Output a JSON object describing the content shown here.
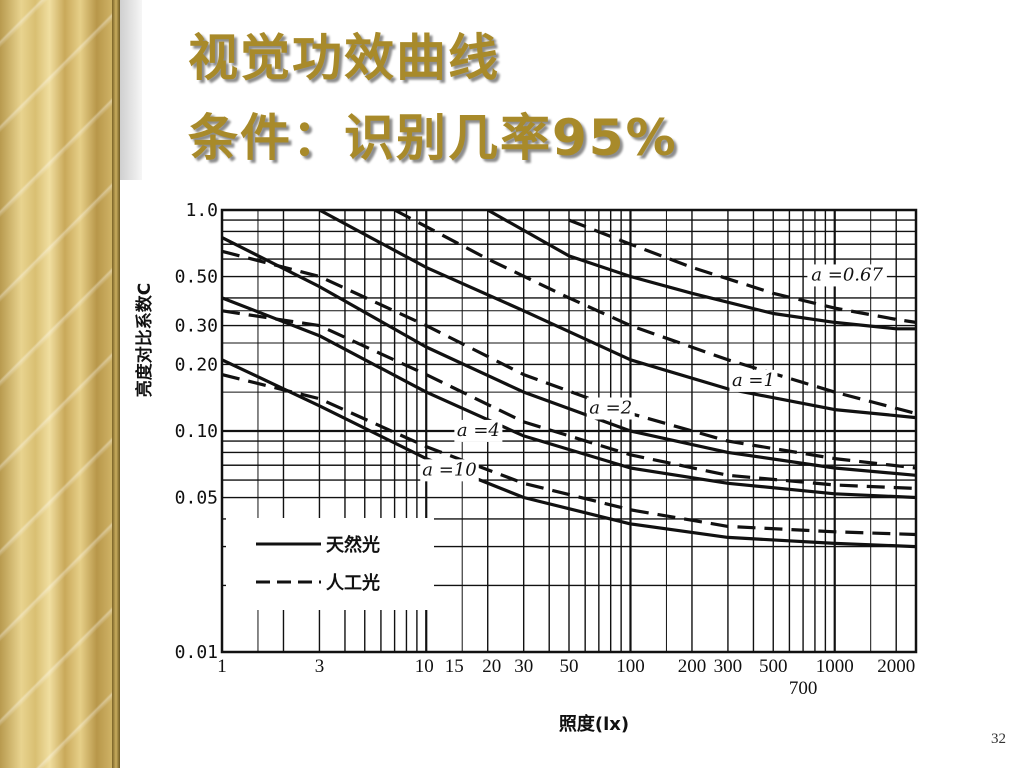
{
  "slide": {
    "title": "视觉功效曲线",
    "subtitle": "条件：识别几率95%",
    "page_number": "32"
  },
  "chart_data": {
    "type": "line",
    "xscale": "log",
    "yscale": "log",
    "xlabel": "照度(lx)",
    "ylabel": "亮度对比系数C",
    "xlim": [
      1,
      2500
    ],
    "ylim": [
      0.01,
      1.0
    ],
    "x_ticks": [
      {
        "value": 1,
        "label": "1"
      },
      {
        "value": 3,
        "label": "3"
      },
      {
        "value": 10,
        "label": "10"
      },
      {
        "value": 15,
        "label": "15"
      },
      {
        "value": 20,
        "label": "20"
      },
      {
        "value": 30,
        "label": "30"
      },
      {
        "value": 50,
        "label": "50"
      },
      {
        "value": 100,
        "label": "100"
      },
      {
        "value": 200,
        "label": "200"
      },
      {
        "value": 300,
        "label": "300"
      },
      {
        "value": 500,
        "label": "500"
      },
      {
        "value": 700,
        "label": "700"
      },
      {
        "value": 1000,
        "label": "1000"
      },
      {
        "value": 2000,
        "label": "2000"
      }
    ],
    "y_ticks": [
      {
        "value": 1.0,
        "label": "1.0"
      },
      {
        "value": 0.5,
        "label": "0.50"
      },
      {
        "value": 0.3,
        "label": "0.30"
      },
      {
        "value": 0.2,
        "label": "0.20"
      },
      {
        "value": 0.1,
        "label": "0.10"
      },
      {
        "value": 0.05,
        "label": "0.05"
      },
      {
        "value": 0.01,
        "label": "0.01"
      }
    ],
    "legend": {
      "placement": "bottom-left",
      "entries": [
        {
          "label": "天然光",
          "style": "solid"
        },
        {
          "label": "人工光",
          "style": "dashed"
        }
      ]
    },
    "curve_labels": [
      {
        "text": "a =0.67",
        "x": 1150,
        "y": 0.48
      },
      {
        "text": "a =1",
        "x": 400,
        "y": 0.16
      },
      {
        "text": "a =2",
        "x": 80,
        "y": 0.12
      },
      {
        "text": "a =4",
        "x": 18,
        "y": 0.095
      },
      {
        "text": "a =10",
        "x": 13,
        "y": 0.063
      }
    ],
    "series": [
      {
        "curve": "a=0.67",
        "style": "solid",
        "x": [
          20,
          50,
          100,
          200,
          500,
          1000,
          2000,
          2500
        ],
        "y": [
          1.0,
          0.62,
          0.5,
          0.42,
          0.34,
          0.31,
          0.29,
          0.29
        ]
      },
      {
        "curve": "a=0.67",
        "style": "dashed",
        "x": [
          50,
          100,
          200,
          500,
          1000,
          2000,
          2500
        ],
        "y": [
          0.9,
          0.7,
          0.55,
          0.42,
          0.36,
          0.32,
          0.31
        ]
      },
      {
        "curve": "a=1",
        "style": "solid",
        "x": [
          3,
          10,
          30,
          100,
          300,
          1000,
          2500
        ],
        "y": [
          1.0,
          0.55,
          0.35,
          0.21,
          0.155,
          0.125,
          0.115
        ]
      },
      {
        "curve": "a=1",
        "style": "dashed",
        "x": [
          7,
          20,
          50,
          100,
          300,
          1000,
          2500
        ],
        "y": [
          1.0,
          0.6,
          0.4,
          0.3,
          0.21,
          0.15,
          0.12
        ]
      },
      {
        "curve": "a=2",
        "style": "solid",
        "x": [
          1,
          3,
          10,
          30,
          100,
          300,
          1000,
          2500
        ],
        "y": [
          0.75,
          0.45,
          0.24,
          0.15,
          0.1,
          0.08,
          0.068,
          0.063
        ]
      },
      {
        "curve": "a=2",
        "style": "dashed",
        "x": [
          1,
          3,
          10,
          30,
          100,
          300,
          1000,
          2500
        ],
        "y": [
          0.65,
          0.5,
          0.3,
          0.18,
          0.12,
          0.09,
          0.075,
          0.068
        ]
      },
      {
        "curve": "a=4",
        "style": "solid",
        "x": [
          1,
          3,
          10,
          30,
          100,
          300,
          1000,
          2500
        ],
        "y": [
          0.4,
          0.27,
          0.15,
          0.095,
          0.068,
          0.058,
          0.052,
          0.05
        ]
      },
      {
        "curve": "a=4",
        "style": "dashed",
        "x": [
          1,
          3,
          10,
          30,
          100,
          300,
          1000,
          2500
        ],
        "y": [
          0.35,
          0.3,
          0.18,
          0.11,
          0.078,
          0.063,
          0.057,
          0.055
        ]
      },
      {
        "curve": "a=10",
        "style": "solid",
        "x": [
          1,
          3,
          10,
          30,
          100,
          300,
          1000,
          2500
        ],
        "y": [
          0.21,
          0.13,
          0.075,
          0.05,
          0.038,
          0.033,
          0.031,
          0.03
        ]
      },
      {
        "curve": "a=10",
        "style": "dashed",
        "x": [
          1,
          3,
          10,
          30,
          100,
          300,
          1000,
          2500
        ],
        "y": [
          0.18,
          0.14,
          0.085,
          0.058,
          0.044,
          0.037,
          0.035,
          0.034
        ]
      }
    ]
  }
}
